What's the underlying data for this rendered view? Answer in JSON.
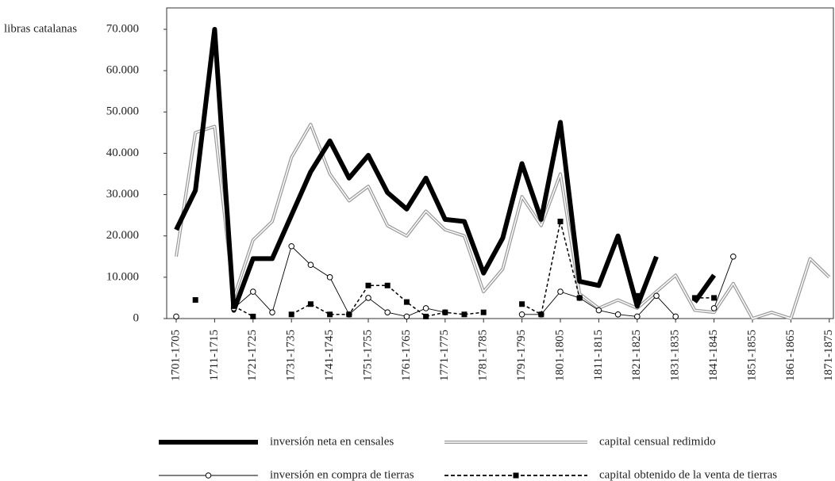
{
  "chart_data": {
    "type": "line",
    "y_label": "libras catalanas",
    "categories": [
      "1701-1705",
      null,
      "1711-1715",
      null,
      "1721-1725",
      null,
      "1731-1735",
      null,
      "1741-1745",
      null,
      "1751-1755",
      null,
      "1761-1765",
      null,
      "1771-1775",
      null,
      "1781-1785",
      null,
      "1791-1795",
      null,
      "1801-1805",
      null,
      "1811-1815",
      null,
      "1821-1825",
      null,
      "1831-1835",
      null,
      "1841-1845",
      null,
      "1851-1855",
      null,
      "1861-1865",
      null,
      "1871-1875"
    ],
    "ylim": [
      0,
      70000
    ],
    "yticks": [
      0,
      {
        "value": 10000,
        "label": "10.000"
      },
      {
        "value": 20000,
        "label": "20.000"
      },
      {
        "value": 30000,
        "label": "30.000"
      },
      {
        "value": 40000,
        "label": "40.000"
      },
      {
        "value": 50000,
        "label": "50.000"
      },
      {
        "value": 60000,
        "label": "60.000"
      },
      {
        "value": 70000,
        "label": "70.000"
      }
    ],
    "series": [
      {
        "name": "inversión neta en censales",
        "color": "#000000",
        "style": "thick",
        "values": [
          21500,
          31000,
          70000,
          2000,
          14500,
          14500,
          25000,
          35500,
          43000,
          34000,
          39500,
          30500,
          26500,
          34000,
          24000,
          23500,
          11000,
          19500,
          37500,
          24000,
          47500,
          9000,
          8000,
          20000,
          3000,
          15000,
          null,
          4000,
          10500,
          null,
          null,
          null,
          null,
          null,
          null
        ]
      },
      {
        "name": "capital censual redimido",
        "color": "#9a9a9a",
        "style": "double",
        "values": [
          15000,
          45000,
          46500,
          5000,
          19000,
          23500,
          39000,
          47000,
          35000,
          28500,
          32000,
          22500,
          20000,
          26000,
          21500,
          20000,
          6500,
          12000,
          29500,
          22500,
          35000,
          6000,
          2500,
          4500,
          2500,
          6500,
          10500,
          2000,
          1500,
          8500,
          0,
          1500,
          0,
          14500,
          10000
        ]
      },
      {
        "name": "inversión en compra de tierras",
        "color": "#000000",
        "style": "circle",
        "values": [
          500,
          null,
          null,
          2500,
          6500,
          1500,
          17500,
          13000,
          10000,
          1000,
          5000,
          1500,
          500,
          2500,
          1500,
          null,
          null,
          null,
          1000,
          1000,
          6500,
          5000,
          2000,
          1000,
          500,
          5500,
          500,
          null,
          2500,
          15000,
          null,
          null,
          null,
          null,
          null
        ]
      },
      {
        "name": "capital obtenido de la venta de tierras",
        "color": "#000000",
        "style": "dashed-square",
        "values": [
          null,
          4500,
          null,
          3000,
          500,
          null,
          1000,
          3500,
          1000,
          1000,
          8000,
          8000,
          4000,
          500,
          1500,
          1000,
          1500,
          null,
          3500,
          1000,
          23500,
          5000,
          null,
          null,
          5500,
          null,
          null,
          5000,
          5000,
          null,
          null,
          null,
          null,
          null,
          null
        ]
      }
    ]
  }
}
